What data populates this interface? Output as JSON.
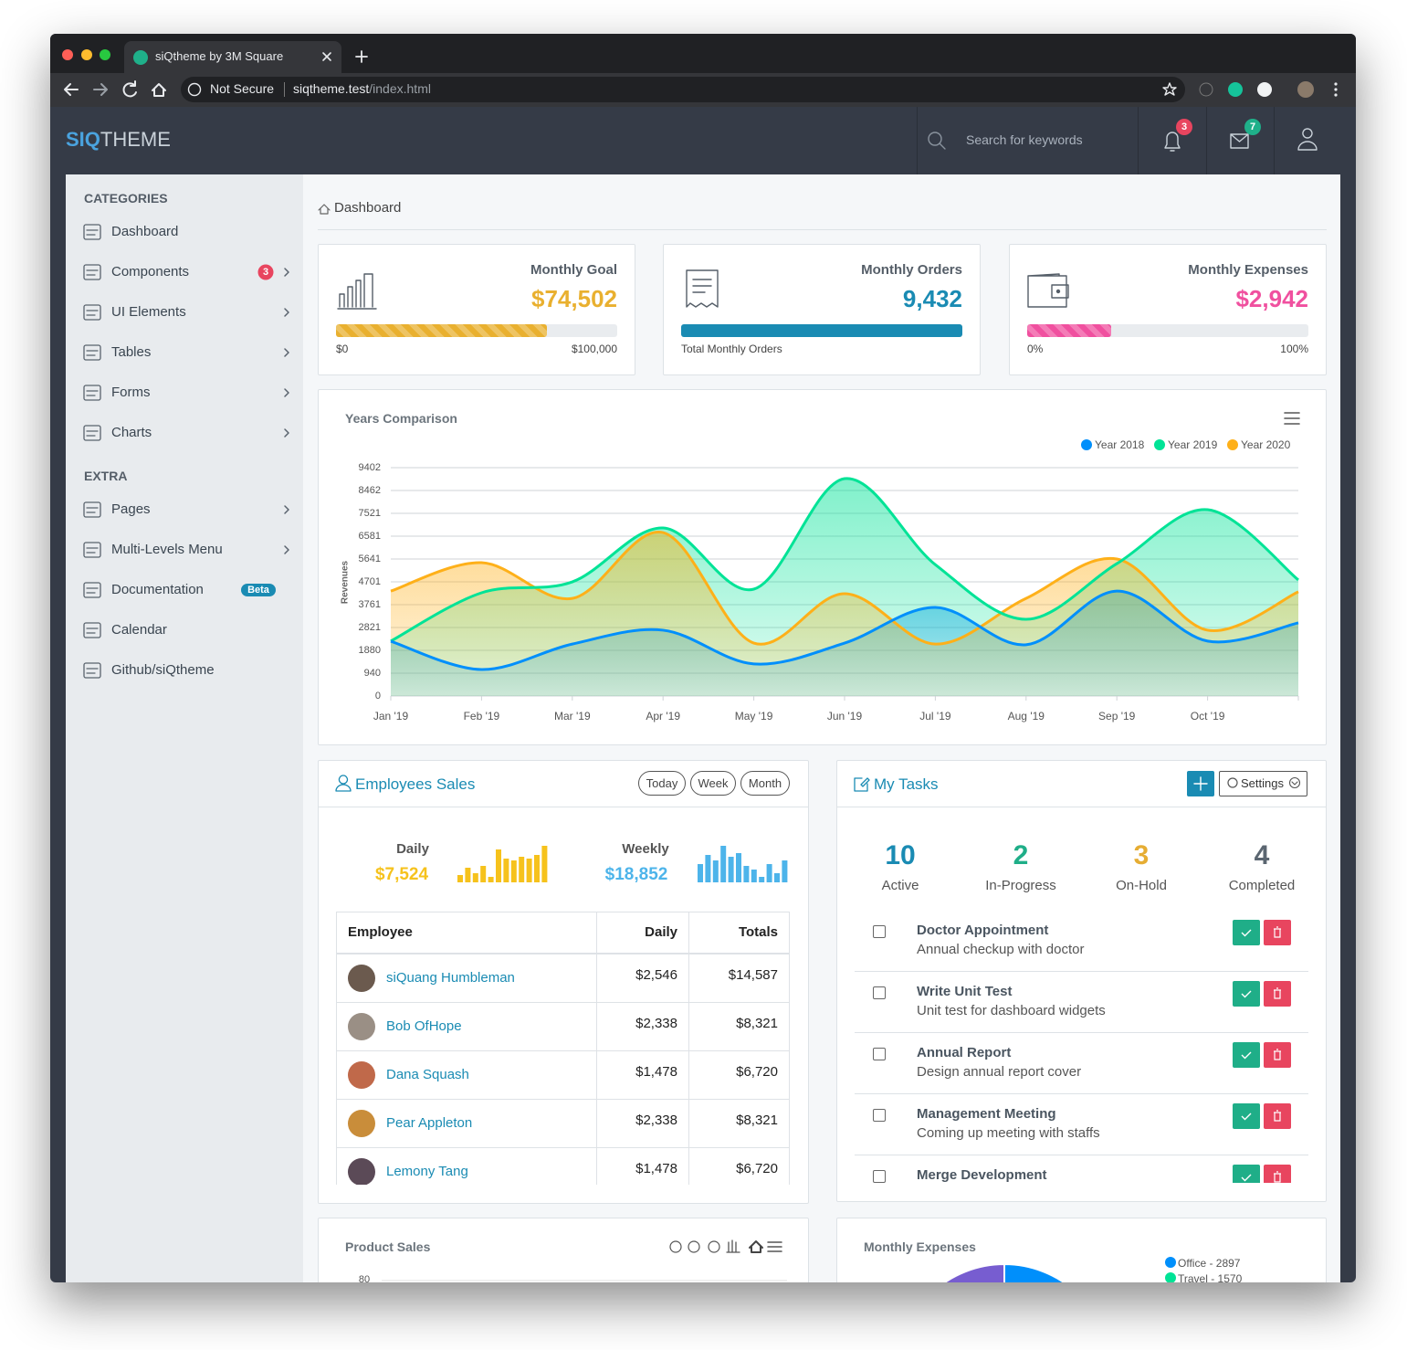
{
  "browser": {
    "tab_title": "siQtheme by 3M Square",
    "security": "Not Secure",
    "url_host": "siqtheme.test",
    "url_path": "/index.html"
  },
  "header": {
    "logo_bold": "SIQ",
    "logo_light": "THEME",
    "search_placeholder": "Search for keywords",
    "notifications": 3,
    "messages": 7
  },
  "sidebar": {
    "sections": [
      {
        "title": "CATEGORIES",
        "items": [
          {
            "label": "Dashboard"
          },
          {
            "label": "Components",
            "badge": 3,
            "badge_color": "#e8455f",
            "arrow": true
          },
          {
            "label": "UI Elements",
            "arrow": true
          },
          {
            "label": "Tables",
            "arrow": true
          },
          {
            "label": "Forms",
            "arrow": true
          },
          {
            "label": "Charts",
            "arrow": true
          }
        ]
      },
      {
        "title": "EXTRA",
        "items": [
          {
            "label": "Pages",
            "arrow": true
          },
          {
            "label": "Multi-Levels Menu",
            "arrow": true
          },
          {
            "label": "Documentation",
            "badge": "Beta",
            "badge_color": "#1a8bb3"
          },
          {
            "label": "Calendar"
          },
          {
            "label": "Github/siQtheme"
          }
        ]
      }
    ]
  },
  "breadcrumb": "Dashboard",
  "stats": [
    {
      "title": "Monthly Goal",
      "value": "$74,502",
      "color": "#e9b02f",
      "progress": 75,
      "striped": true,
      "labels": [
        "$0",
        "$100,000"
      ]
    },
    {
      "title": "Monthly Orders",
      "value": "9,432",
      "color": "#1a8bb3",
      "progress": 100,
      "striped": false,
      "labels": [
        "Total Monthly Orders"
      ]
    },
    {
      "title": "Monthly Expenses",
      "value": "$2,942",
      "color": "#f0509f",
      "progress": 30,
      "striped": true,
      "labels": [
        "0%",
        "100%"
      ]
    }
  ],
  "years_comparison": {
    "type": "area",
    "title": "Years Comparison",
    "y_label": "Revenues",
    "categories": [
      "Jan '19",
      "Feb '19",
      "Mar '19",
      "Apr '19",
      "May '19",
      "Jun '19",
      "Jul '19",
      "Aug '19",
      "Sep '19",
      "Oct '19",
      null
    ],
    "series": [
      {
        "name": "Year 2018",
        "color": "#008ffb",
        "values": [
          2256,
          1090,
          2140,
          2710,
          1320,
          2180,
          3650,
          2110,
          4320,
          2260,
          3010
        ]
      },
      {
        "name": "Year 2019",
        "color": "#00e396",
        "values": [
          2260,
          4250,
          4700,
          6920,
          4400,
          8950,
          5410,
          3160,
          5450,
          7670,
          4780
        ]
      },
      {
        "name": "Year 2020",
        "color": "#feb019",
        "values": [
          4320,
          5490,
          4020,
          6730,
          2180,
          4210,
          2140,
          4020,
          5640,
          2710,
          4290
        ]
      }
    ],
    "ylim": [
      0,
      9402
    ],
    "yticks": [
      0,
      940,
      1880,
      2821,
      3761,
      4701,
      5641,
      6581,
      7521,
      8462,
      9402
    ],
    "grid": true,
    "legend": "top-right"
  },
  "employees_sales": {
    "title": "Employees Sales",
    "filters": [
      "Today",
      "Week",
      "Month"
    ],
    "daily": {
      "label": "Daily",
      "value": "$7,524",
      "color": "#f6c21c",
      "bars": [
        8,
        16,
        10,
        18,
        6,
        36,
        26,
        24,
        28,
        26,
        30,
        40
      ]
    },
    "weekly": {
      "label": "Weekly",
      "value": "$18,852",
      "color": "#4db4ea",
      "bars": [
        20,
        30,
        24,
        40,
        28,
        32,
        18,
        14,
        6,
        20,
        10,
        24
      ]
    },
    "table": {
      "columns": [
        "Employee",
        "Daily",
        "Totals"
      ],
      "rows": [
        [
          "siQuang Humbleman",
          "$2,546",
          "$14,587"
        ],
        [
          "Bob OfHope",
          "$2,338",
          "$8,321"
        ],
        [
          "Dana Squash",
          "$1,478",
          "$6,720"
        ],
        [
          "Pear Appleton",
          "$2,338",
          "$8,321"
        ],
        [
          "Lemony Tang",
          "$1,478",
          "$6,720"
        ]
      ]
    }
  },
  "my_tasks": {
    "title": "My Tasks",
    "settings": "Settings",
    "counts": [
      {
        "value": 10,
        "label": "Active",
        "color": "#1a8bb3"
      },
      {
        "value": 2,
        "label": "In-Progress",
        "color": "#1fae88"
      },
      {
        "value": 3,
        "label": "On-Hold",
        "color": "#e6ad33"
      },
      {
        "value": 4,
        "label": "Completed",
        "color": "#5b6671"
      }
    ],
    "items": [
      {
        "title": "Doctor Appointment",
        "subtitle": "Annual checkup with doctor"
      },
      {
        "title": "Write Unit Test",
        "subtitle": "Unit test for dashboard widgets"
      },
      {
        "title": "Annual Report",
        "subtitle": "Design annual report cover"
      },
      {
        "title": "Management Meeting",
        "subtitle": "Coming up meeting with staffs"
      },
      {
        "title": "Merge Development"
      }
    ]
  },
  "product_sales": {
    "title": "Product Sales",
    "yticks": [
      80
    ]
  },
  "monthly_expenses": {
    "title": "Monthly Expenses",
    "legend": [
      {
        "label": "Office - 2897",
        "color": "#008ffb"
      },
      {
        "label": "Travel - 1570",
        "color": "#00e396"
      }
    ]
  }
}
